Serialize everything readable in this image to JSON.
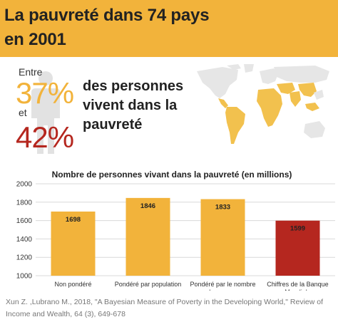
{
  "header": {
    "title_line1": "La pauvreté dans 74 pays",
    "title_line2": "en 2001"
  },
  "stats": {
    "entre": "Entre",
    "low_pct": "37%",
    "et": "et",
    "high_pct": "42%",
    "headline": "des personnes vivent dans la pauvreté"
  },
  "colors": {
    "accent": "#f2b33b",
    "highlight": "#b5271f",
    "map_land": "#e6e6e6",
    "map_highlight": "#f2c14e"
  },
  "icons": [
    "person-silhouette-icon",
    "world-map-icon"
  ],
  "chart_data": {
    "type": "bar",
    "title": "Nombre de personnes vivant dans la pauvreté (en millions)",
    "categories": [
      [
        "Non pondéré"
      ],
      [
        "Pondéré par population"
      ],
      [
        "Pondéré par le nombre",
        "de pauvres"
      ],
      [
        "Chiffres de la Banque",
        "Mondiale"
      ]
    ],
    "values": [
      1698,
      1846,
      1833,
      1599
    ],
    "value_labels": [
      "1698",
      "1846",
      "1833",
      "1599"
    ],
    "bar_colors": [
      "#f2b33b",
      "#f2b33b",
      "#f2b33b",
      "#b5271f"
    ],
    "ylim": [
      1000,
      2000
    ],
    "yticks": [
      1000,
      1200,
      1400,
      1600,
      1800,
      2000
    ],
    "grid": true,
    "xlabel": "",
    "ylabel": ""
  },
  "source": "Xun Z. ,Lubrano M., 2018, \"A Bayesian Measure of Poverty in the Developing World,\" Review of Income and Wealth, 64 (3), 649-678"
}
